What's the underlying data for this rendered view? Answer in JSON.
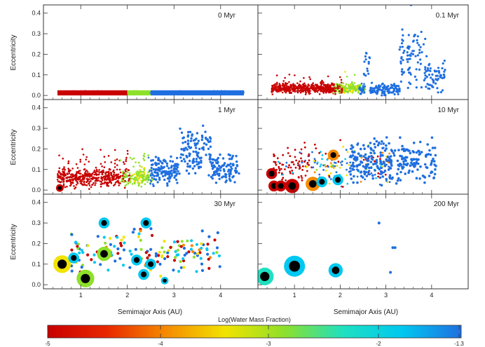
{
  "chart_data": {
    "type": "scatter",
    "layout": "3x2 panel grid",
    "x_label": "Semimajor Axis (AU)",
    "y_label": "Eccentricity",
    "x_range": [
      0.2,
      4.8
    ],
    "y_range": [
      -0.02,
      0.44
    ],
    "x_ticks": [
      1,
      2,
      3,
      4
    ],
    "y_ticks": [
      "0.0",
      "0.1",
      "0.2",
      "0.3",
      "0.4"
    ],
    "colorbar": {
      "label": "Log(Water Mass Fraction)",
      "tick_labels": [
        "-5",
        "-4",
        "-3",
        "-2",
        "-1.3"
      ],
      "colors": [
        "#c80000",
        "#e82800",
        "#f58a00",
        "#f2e300",
        "#8ee02a",
        "#1fe0c0",
        "#00c8f0",
        "#1f6fe0"
      ],
      "note": "colour = log10 water mass fraction of each body; symbol size = body mass"
    },
    "panels": [
      {
        "label": "0 Myr",
        "description": "initial uniform disk of planetesimals on near-circular orbits",
        "bands": [
          {
            "a_range": [
              0.5,
              2.0
            ],
            "e": 0.01,
            "water": "dry (-5)"
          },
          {
            "a_range": [
              2.0,
              2.5
            ],
            "e": 0.01,
            "water": "intermediate (-3)"
          },
          {
            "a_range": [
              2.5,
              4.5
            ],
            "e": 0.01,
            "water": "wet (-1.3)"
          }
        ]
      },
      {
        "label": "0.1 Myr",
        "embryos": []
      },
      {
        "label": "1 Myr",
        "embryos": [
          {
            "a": 0.55,
            "e": 0.01,
            "mass": "small",
            "water": "dry"
          }
        ]
      },
      {
        "label": "10 Myr",
        "embryos": [
          {
            "a": 0.5,
            "e": 0.08,
            "size": 2,
            "ring": "#c80000"
          },
          {
            "a": 0.55,
            "e": 0.02,
            "size": 2,
            "ring": "#c80000"
          },
          {
            "a": 0.7,
            "e": 0.02,
            "size": 2,
            "ring": "#c80000"
          },
          {
            "a": 0.95,
            "e": 0.02,
            "size": 3,
            "ring": "#c80000"
          },
          {
            "a": 1.4,
            "e": 0.03,
            "size": 3,
            "ring": "#f58a00"
          },
          {
            "a": 1.6,
            "e": 0.04,
            "size": 2,
            "ring": "#00c8f0"
          },
          {
            "a": 1.95,
            "e": 0.05,
            "size": 2,
            "ring": "#00c8f0"
          },
          {
            "a": 1.85,
            "e": 0.17,
            "size": 2,
            "ring": "#f58a00"
          }
        ]
      },
      {
        "label": "30 Myr",
        "embryos": [
          {
            "a": 0.6,
            "e": 0.1,
            "size": 4,
            "ring": "#f2e300"
          },
          {
            "a": 1.1,
            "e": 0.03,
            "size": 4,
            "ring": "#8ee02a"
          },
          {
            "a": 1.5,
            "e": 0.15,
            "size": 3,
            "ring": "#8ee02a"
          },
          {
            "a": 0.85,
            "e": 0.13,
            "size": 2,
            "ring": "#00c8f0"
          },
          {
            "a": 2.2,
            "e": 0.12,
            "size": 2,
            "ring": "#00c8f0"
          },
          {
            "a": 2.35,
            "e": 0.05,
            "size": 2,
            "ring": "#00c8f0"
          },
          {
            "a": 2.5,
            "e": 0.1,
            "size": 2,
            "ring": "#00c8f0"
          },
          {
            "a": 1.5,
            "e": 0.3,
            "size": 2,
            "ring": "#00c8f0"
          },
          {
            "a": 2.4,
            "e": 0.3,
            "size": 2,
            "ring": "#00c8f0"
          },
          {
            "a": 2.8,
            "e": 0.02,
            "size": 1,
            "ring": "#00c8f0"
          }
        ]
      },
      {
        "label": "200 Myr",
        "embryos": [
          {
            "a": 0.35,
            "e": 0.04,
            "size": 4,
            "ring": "#1fe0c0"
          },
          {
            "a": 1.0,
            "e": 0.09,
            "size": 5,
            "ring": "#00c8f0"
          },
          {
            "a": 1.9,
            "e": 0.07,
            "size": 3,
            "ring": "#00c8f0"
          }
        ],
        "particles": [
          {
            "a": 2.85,
            "e": 0.3
          },
          {
            "a": 3.15,
            "e": 0.18
          },
          {
            "a": 3.2,
            "e": 0.18
          },
          {
            "a": 3.1,
            "e": 0.06
          }
        ]
      }
    ]
  }
}
